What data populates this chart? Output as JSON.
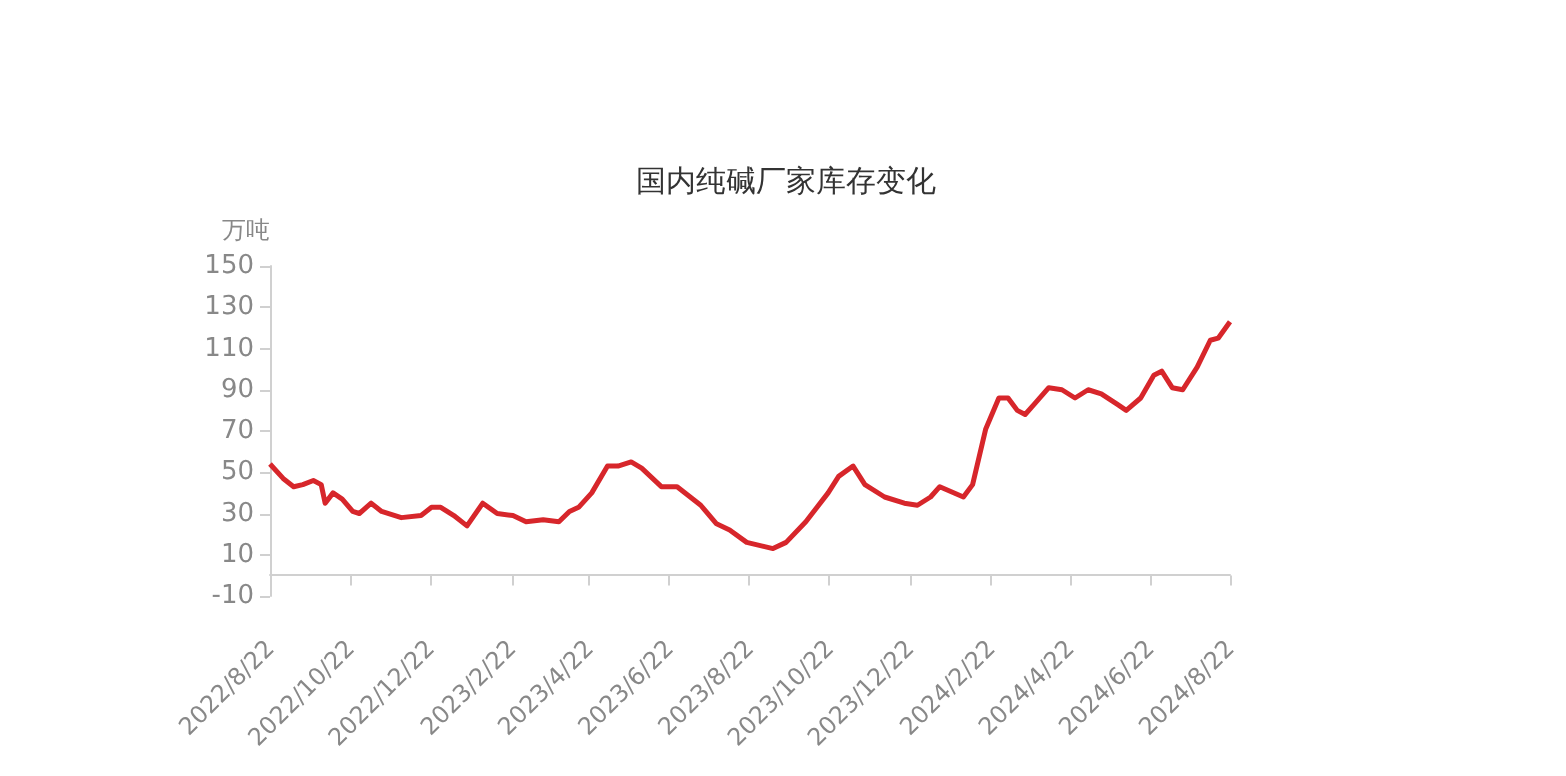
{
  "chart_data": {
    "type": "line",
    "title": "国内纯碱厂家库存变化",
    "ylabel": "万吨",
    "x": [
      "2022-08-22",
      "2022-09-01",
      "2022-09-09",
      "2022-09-16",
      "2022-09-24",
      "2022-09-30",
      "2022-10-03",
      "2022-10-09",
      "2022-10-16",
      "2022-10-24",
      "2022-10-29",
      "2022-11-07",
      "2022-11-15",
      "2022-11-30",
      "2022-12-15",
      "2022-12-23",
      "2022-12-30",
      "2023-01-09",
      "2023-01-19",
      "2023-01-31",
      "2023-02-11",
      "2023-02-23",
      "2023-03-05",
      "2023-03-18",
      "2023-03-30",
      "2023-04-07",
      "2023-04-14",
      "2023-04-24",
      "2023-05-06",
      "2023-05-14",
      "2023-05-24",
      "2023-06-01",
      "2023-06-16",
      "2023-06-28",
      "2023-07-16",
      "2023-07-28",
      "2023-08-07",
      "2023-08-20",
      "2023-09-09",
      "2023-09-19",
      "2023-10-04",
      "2023-10-21",
      "2023-10-29",
      "2023-11-09",
      "2023-11-18",
      "2023-12-03",
      "2023-12-18",
      "2023-12-28",
      "2024-01-07",
      "2024-01-14",
      "2024-02-01",
      "2024-02-08",
      "2024-02-18",
      "2024-02-28",
      "2024-03-06",
      "2024-03-13",
      "2024-03-19",
      "2024-03-26",
      "2024-04-06",
      "2024-04-16",
      "2024-04-26",
      "2024-05-06",
      "2024-05-16",
      "2024-05-28",
      "2024-06-04",
      "2024-06-15",
      "2024-06-25",
      "2024-07-01",
      "2024-07-09",
      "2024-07-17",
      "2024-07-28",
      "2024-08-07",
      "2024-08-13",
      "2024-08-22"
    ],
    "series": [
      {
        "color": "#d7262b",
        "values": [
          54,
          47,
          43,
          44,
          46,
          44,
          35,
          40,
          37,
          31,
          30,
          35,
          31,
          28,
          29,
          33,
          33,
          29,
          24,
          35,
          30,
          29,
          26,
          27,
          26,
          31,
          33,
          40,
          53,
          53,
          55,
          52,
          43,
          43,
          34,
          25,
          22,
          16,
          13,
          16,
          26,
          40,
          48,
          53,
          44,
          38,
          35,
          34,
          38,
          43,
          38,
          44,
          71,
          86,
          86,
          80,
          78,
          83,
          91,
          90,
          86,
          90,
          88,
          83,
          80,
          86,
          97,
          99,
          91,
          90,
          101,
          114,
          115,
          123
        ]
      }
    ],
    "xlim": [
      "2022-08-22",
      "2024-08-22"
    ],
    "xticks": [
      {
        "value": "2022-08-22",
        "label": "2022/8/22"
      },
      {
        "value": "2022-10-22",
        "label": "2022/10/22"
      },
      {
        "value": "2022-12-22",
        "label": "2022/12/22"
      },
      {
        "value": "2023-02-22",
        "label": "2023/2/22"
      },
      {
        "value": "2023-04-22",
        "label": "2023/4/22"
      },
      {
        "value": "2023-06-22",
        "label": "2023/6/22"
      },
      {
        "value": "2023-08-22",
        "label": "2023/8/22"
      },
      {
        "value": "2023-10-22",
        "label": "2023/10/22"
      },
      {
        "value": "2023-12-22",
        "label": "2023/12/22"
      },
      {
        "value": "2024-02-22",
        "label": "2024/2/22"
      },
      {
        "value": "2024-04-22",
        "label": "2024/4/22"
      },
      {
        "value": "2024-06-22",
        "label": "2024/6/22"
      },
      {
        "value": "2024-08-22",
        "label": "2024/8/22"
      }
    ],
    "ylim": [
      -10,
      150
    ],
    "yticks": [
      -10,
      10,
      30,
      50,
      70,
      90,
      110,
      130,
      150
    ],
    "grid": false,
    "marker": "none",
    "line_style": "solid"
  }
}
